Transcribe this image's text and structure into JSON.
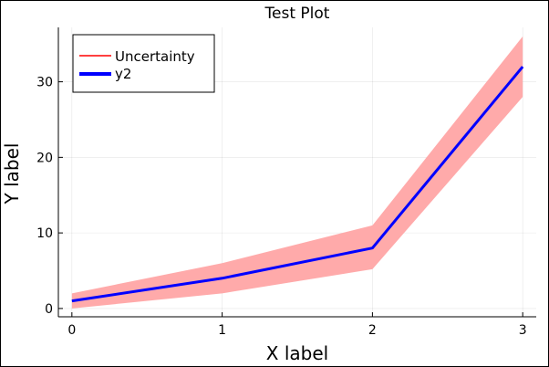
{
  "chart_data": {
    "type": "line",
    "title": "Test Plot",
    "xlabel": "X label",
    "ylabel": "Y label",
    "xlim": [
      -0.09,
      3.09
    ],
    "ylim": [
      -1.1,
      37.2
    ],
    "xticks": [
      0,
      1,
      2,
      3
    ],
    "xtick_labels": [
      "0",
      "1",
      "2",
      "3"
    ],
    "yticks": [
      0,
      10,
      20,
      30
    ],
    "ytick_labels": [
      "0",
      "10",
      "20",
      "30"
    ],
    "grid": true,
    "legend_position": "top-left",
    "series": [
      {
        "name": "Uncertainty",
        "kind": "band",
        "color": "#ff0000",
        "fill": "#ffaaaa",
        "x": [
          0,
          1,
          2,
          3
        ],
        "lower": [
          0.0,
          2.0,
          5.2,
          28.0
        ],
        "upper": [
          2.0,
          6.0,
          11.0,
          36.0
        ]
      },
      {
        "name": "y2",
        "kind": "line",
        "color": "#0000ff",
        "x": [
          0,
          1,
          2,
          3
        ],
        "values": [
          1,
          4,
          8,
          32
        ]
      }
    ]
  }
}
